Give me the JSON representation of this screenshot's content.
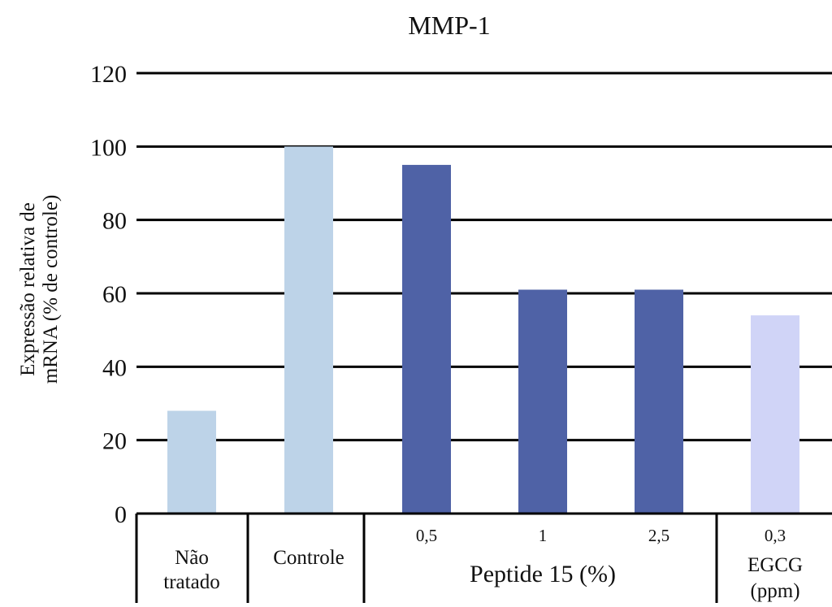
{
  "chart_data": {
    "type": "bar",
    "title": "MMP-1",
    "ylabel_lines": [
      "Expressão relativa de",
      "mRNA (% de controle)"
    ],
    "ylim": [
      0,
      120
    ],
    "yticks": [
      0,
      20,
      40,
      60,
      80,
      100,
      120
    ],
    "grid": true,
    "bars": [
      {
        "sub_label": "",
        "value": 28,
        "color": "#bdd3e8"
      },
      {
        "sub_label": "",
        "value": 100,
        "color": "#bdd3e8"
      },
      {
        "sub_label": "0,5",
        "value": 95,
        "color": "#4f62a6"
      },
      {
        "sub_label": "1",
        "value": 61,
        "color": "#4f62a6"
      },
      {
        "sub_label": "2,5",
        "value": 61,
        "color": "#4f62a6"
      },
      {
        "sub_label": "0,3",
        "value": 54,
        "color": "#d0d4f7"
      }
    ],
    "groups": [
      {
        "label_lines": [
          "Não",
          "tratado"
        ]
      },
      {
        "label_lines": [
          "Controle"
        ]
      },
      {
        "label_lines": [
          "Peptide 15 (%)"
        ]
      },
      {
        "label_lines": [
          "EGCG",
          "(ppm)"
        ]
      }
    ]
  }
}
